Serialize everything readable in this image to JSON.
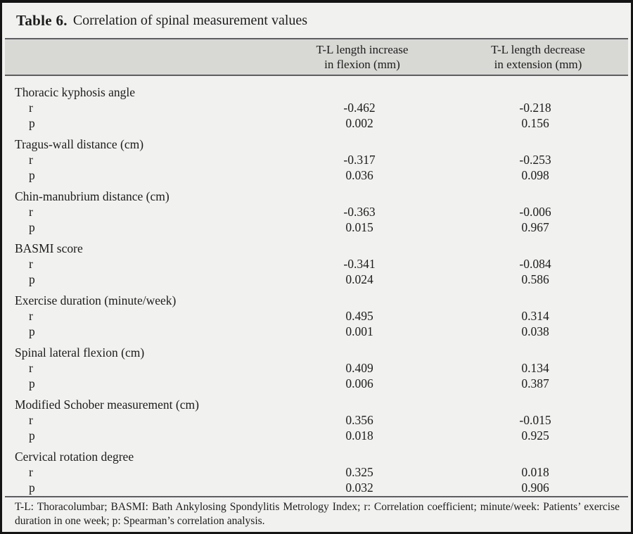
{
  "title": {
    "label": "Table 6.",
    "caption": "Correlation of spinal measurement values"
  },
  "columns": [
    {
      "line1": "T-L length increase",
      "line2": "in flexion (mm)"
    },
    {
      "line1": "T-L length decrease",
      "line2": "in extension (mm)"
    }
  ],
  "row_labels": {
    "r": "r",
    "p": "p"
  },
  "groups": [
    {
      "label": "Thoracic kyphosis angle",
      "r": [
        "-0.462",
        "-0.218"
      ],
      "p": [
        "0.002",
        "0.156"
      ]
    },
    {
      "label": "Tragus-wall distance (cm)",
      "r": [
        "-0.317",
        "-0.253"
      ],
      "p": [
        "0.036",
        "0.098"
      ]
    },
    {
      "label": "Chin-manubrium distance (cm)",
      "r": [
        "-0.363",
        "-0.006"
      ],
      "p": [
        "0.015",
        "0.967"
      ]
    },
    {
      "label": "BASMI score",
      "r": [
        "-0.341",
        "-0.084"
      ],
      "p": [
        "0.024",
        "0.586"
      ]
    },
    {
      "label": "Exercise duration (minute/week)",
      "r": [
        "0.495",
        "0.314"
      ],
      "p": [
        "0.001",
        "0.038"
      ]
    },
    {
      "label": "Spinal lateral flexion (cm)",
      "r": [
        "0.409",
        "0.134"
      ],
      "p": [
        "0.006",
        "0.387"
      ]
    },
    {
      "label": "Modified Schober measurement (cm)",
      "r": [
        "0.356",
        "-0.015"
      ],
      "p": [
        "0.018",
        "0.925"
      ]
    },
    {
      "label": "Cervical rotation degree",
      "r": [
        "0.325",
        "0.018"
      ],
      "p": [
        "0.032",
        "0.906"
      ]
    }
  ],
  "footnote": "T-L: Thoracolumbar; BASMI: Bath Ankylosing Spondylitis Metrology Index; r: Correlation coefficient; minute/week: Patients’ exercise duration in one week; p: Spearman’s correlation analysis.",
  "colors": {
    "frame_border": "#141414",
    "background": "#f1f1ef",
    "header_band": "#d8d8d5",
    "rule": "#5d5d62",
    "text": "#1c1c1c"
  }
}
